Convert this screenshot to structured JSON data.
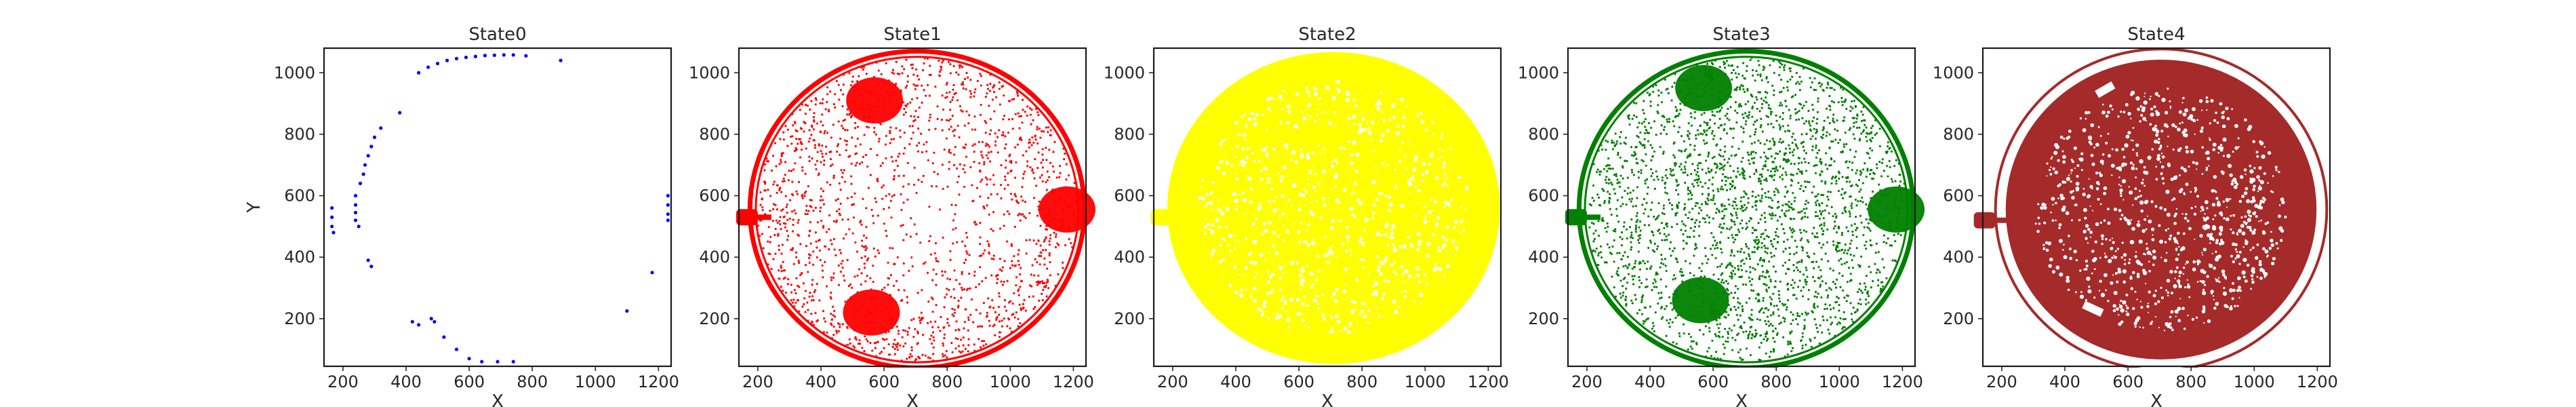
{
  "chart_data": [
    {
      "type": "scatter",
      "title": "State0",
      "xlabel": "X",
      "ylabel": "Y",
      "xlim": [
        140,
        1240
      ],
      "ylim": [
        45,
        1080
      ],
      "xticks": [
        200,
        400,
        600,
        800,
        1000,
        1200
      ],
      "yticks": [
        200,
        400,
        600,
        800,
        1000
      ],
      "color": "#0000ff",
      "grid": false,
      "series": [
        {
          "points": [
            [
              440,
              1000
            ],
            [
              470,
              1018
            ],
            [
              500,
              1030
            ],
            [
              530,
              1040
            ],
            [
              560,
              1046
            ],
            [
              590,
              1050
            ],
            [
              620,
              1053
            ],
            [
              650,
              1056
            ],
            [
              680,
              1057
            ],
            [
              710,
              1058
            ],
            [
              740,
              1058
            ],
            [
              780,
              1055
            ],
            [
              890,
              1040
            ],
            [
              380,
              870
            ],
            [
              320,
              820
            ],
            [
              300,
              790
            ],
            [
              290,
              760
            ],
            [
              280,
              730
            ],
            [
              270,
              700
            ],
            [
              265,
              670
            ],
            [
              255,
              640
            ],
            [
              240,
              600
            ],
            [
              240,
              570
            ],
            [
              240,
              545
            ],
            [
              240,
              520
            ],
            [
              250,
              500
            ],
            [
              165,
              560
            ],
            [
              165,
              530
            ],
            [
              165,
              500
            ],
            [
              170,
              480
            ],
            [
              280,
              390
            ],
            [
              290,
              370
            ],
            [
              420,
              190
            ],
            [
              440,
              180
            ],
            [
              480,
              200
            ],
            [
              490,
              190
            ],
            [
              520,
              140
            ],
            [
              560,
              100
            ],
            [
              600,
              70
            ],
            [
              640,
              60
            ],
            [
              690,
              60
            ],
            [
              740,
              60
            ],
            [
              1100,
              225
            ],
            [
              1180,
              350
            ],
            [
              1230,
              600
            ],
            [
              1230,
              570
            ],
            [
              1230,
              540
            ],
            [
              1230,
              520
            ]
          ]
        }
      ]
    },
    {
      "type": "scatter",
      "title": "State1",
      "xlabel": "X",
      "ylabel": "",
      "xlim": [
        140,
        1240
      ],
      "ylim": [
        45,
        1080
      ],
      "xticks": [
        200,
        400,
        600,
        800,
        1000,
        1200
      ],
      "yticks": [
        200,
        400,
        600,
        800,
        1000
      ],
      "color": "#ff0000",
      "grid": false,
      "shape": {
        "center": [
          705,
          555
        ],
        "radius": [
          530,
          515
        ],
        "density": "high-rim",
        "clusters": [
          [
            570,
            910
          ],
          [
            560,
            220
          ],
          [
            1180,
            555
          ],
          [
            170,
            530
          ]
        ]
      }
    },
    {
      "type": "scatter",
      "title": "State2",
      "xlabel": "X",
      "ylabel": "",
      "xlim": [
        140,
        1240
      ],
      "ylim": [
        45,
        1080
      ],
      "xticks": [
        200,
        400,
        600,
        800,
        1000,
        1200
      ],
      "yticks": [
        200,
        400,
        600,
        800,
        1000
      ],
      "color": "#ffff00",
      "grid": false,
      "shape": {
        "center": [
          710,
          560
        ],
        "radius": [
          535,
          515
        ],
        "density": "dense",
        "clusters": [
          [
            170,
            530
          ]
        ]
      }
    },
    {
      "type": "scatter",
      "title": "State3",
      "xlabel": "X",
      "ylabel": "",
      "xlim": [
        140,
        1240
      ],
      "ylim": [
        45,
        1080
      ],
      "xticks": [
        200,
        400,
        600,
        800,
        1000,
        1200
      ],
      "yticks": [
        200,
        400,
        600,
        800,
        1000
      ],
      "color": "#008000",
      "grid": false,
      "shape": {
        "center": [
          705,
          555
        ],
        "radius": [
          530,
          515
        ],
        "density": "medium",
        "clusters": [
          [
            570,
            950
          ],
          [
            560,
            260
          ],
          [
            1180,
            555
          ],
          [
            170,
            530
          ]
        ]
      }
    },
    {
      "type": "scatter",
      "title": "State4",
      "xlabel": "X",
      "ylabel": "",
      "xlim": [
        140,
        1240
      ],
      "ylim": [
        45,
        1080
      ],
      "xticks": [
        200,
        400,
        600,
        800,
        1000,
        1200
      ],
      "yticks": [
        200,
        400,
        600,
        800,
        1000
      ],
      "color": "#a52a2a",
      "grid": false,
      "shape": {
        "center": [
          705,
          555
        ],
        "radius": [
          500,
          495
        ],
        "density": "very-dense",
        "clusters": [
          [
            150,
            520
          ]
        ]
      }
    }
  ]
}
